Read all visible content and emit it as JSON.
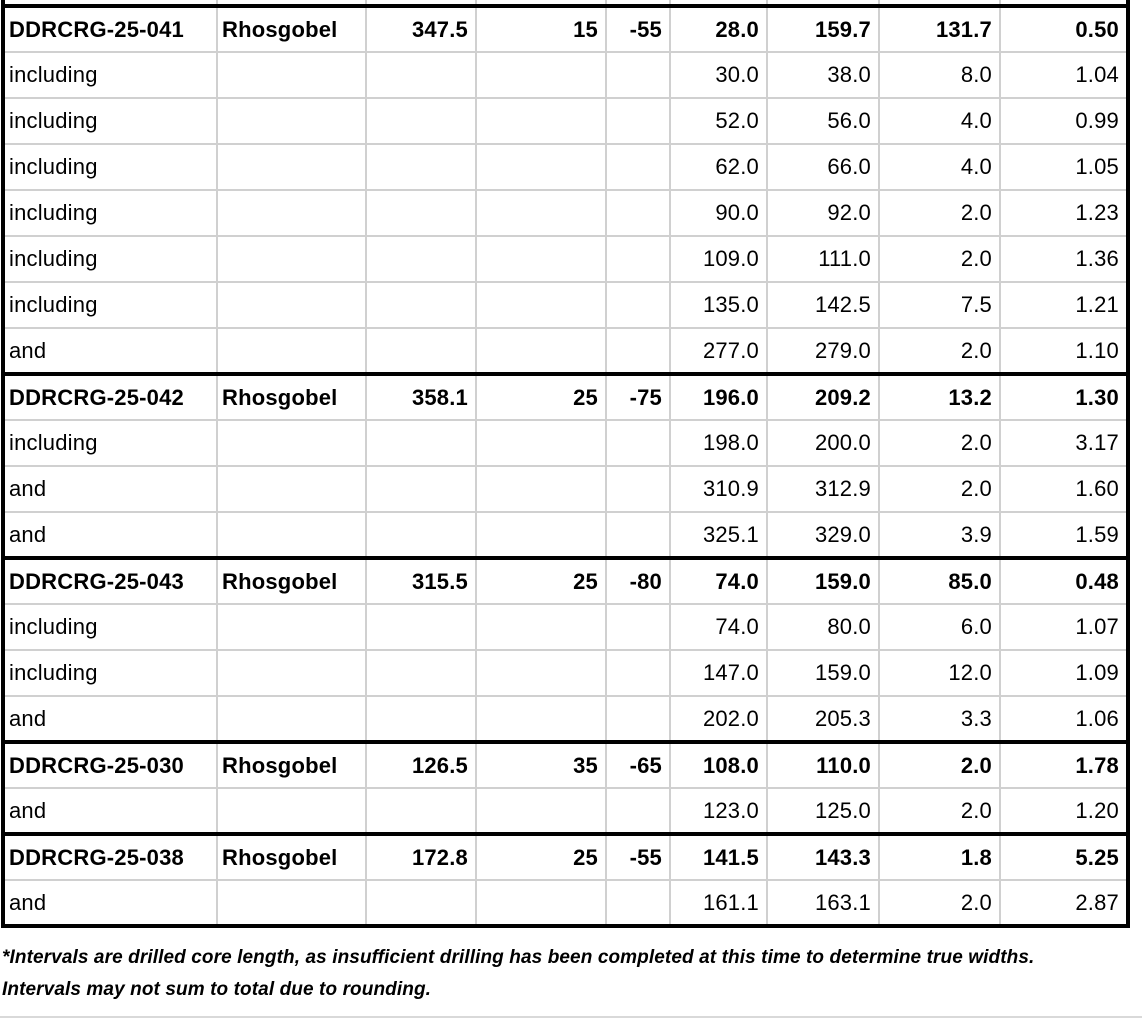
{
  "table": {
    "rows": [
      {
        "type": "hole",
        "cells": [
          "DDRCRG-25-041",
          "Rhosgobel",
          "347.5",
          "15",
          "-55",
          "28.0",
          "159.7",
          "131.7",
          "0.50"
        ]
      },
      {
        "type": "interval",
        "cells": [
          "including",
          "",
          "",
          "",
          "",
          "30.0",
          "38.0",
          "8.0",
          "1.04"
        ]
      },
      {
        "type": "interval",
        "cells": [
          "including",
          "",
          "",
          "",
          "",
          "52.0",
          "56.0",
          "4.0",
          "0.99"
        ]
      },
      {
        "type": "interval",
        "cells": [
          "including",
          "",
          "",
          "",
          "",
          "62.0",
          "66.0",
          "4.0",
          "1.05"
        ]
      },
      {
        "type": "interval",
        "cells": [
          "including",
          "",
          "",
          "",
          "",
          "90.0",
          "92.0",
          "2.0",
          "1.23"
        ]
      },
      {
        "type": "interval",
        "cells": [
          "including",
          "",
          "",
          "",
          "",
          "109.0",
          "111.0",
          "2.0",
          "1.36"
        ]
      },
      {
        "type": "interval",
        "cells": [
          "including",
          "",
          "",
          "",
          "",
          "135.0",
          "142.5",
          "7.5",
          "1.21"
        ]
      },
      {
        "type": "interval",
        "cells": [
          "and",
          "",
          "",
          "",
          "",
          "277.0",
          "279.0",
          "2.0",
          "1.10"
        ]
      },
      {
        "type": "hole",
        "cells": [
          "DDRCRG-25-042",
          "Rhosgobel",
          "358.1",
          "25",
          "-75",
          "196.0",
          "209.2",
          "13.2",
          "1.30"
        ]
      },
      {
        "type": "interval",
        "cells": [
          "including",
          "",
          "",
          "",
          "",
          "198.0",
          "200.0",
          "2.0",
          "3.17"
        ]
      },
      {
        "type": "interval",
        "cells": [
          "and",
          "",
          "",
          "",
          "",
          "310.9",
          "312.9",
          "2.0",
          "1.60"
        ]
      },
      {
        "type": "interval",
        "cells": [
          "and",
          "",
          "",
          "",
          "",
          "325.1",
          "329.0",
          "3.9",
          "1.59"
        ]
      },
      {
        "type": "hole",
        "cells": [
          "DDRCRG-25-043",
          "Rhosgobel",
          "315.5",
          "25",
          "-80",
          "74.0",
          "159.0",
          "85.0",
          "0.48"
        ]
      },
      {
        "type": "interval",
        "cells": [
          "including",
          "",
          "",
          "",
          "",
          "74.0",
          "80.0",
          "6.0",
          "1.07"
        ]
      },
      {
        "type": "interval",
        "cells": [
          "including",
          "",
          "",
          "",
          "",
          "147.0",
          "159.0",
          "12.0",
          "1.09"
        ]
      },
      {
        "type": "interval",
        "cells": [
          "and",
          "",
          "",
          "",
          "",
          "202.0",
          "205.3",
          "3.3",
          "1.06"
        ]
      },
      {
        "type": "hole",
        "cells": [
          "DDRCRG-25-030",
          "Rhosgobel",
          "126.5",
          "35",
          "-65",
          "108.0",
          "110.0",
          "2.0",
          "1.78"
        ]
      },
      {
        "type": "interval",
        "cells": [
          "and",
          "",
          "",
          "",
          "",
          "123.0",
          "125.0",
          "2.0",
          "1.20"
        ]
      },
      {
        "type": "hole",
        "cells": [
          "DDRCRG-25-038",
          "Rhosgobel",
          "172.8",
          "25",
          "-55",
          "141.5",
          "143.3",
          "1.8",
          "5.25"
        ]
      },
      {
        "type": "interval",
        "cells": [
          "and",
          "",
          "",
          "",
          "",
          "161.1",
          "163.1",
          "2.0",
          "2.87"
        ]
      }
    ]
  },
  "footnotes": {
    "line1": "*Intervals are drilled core length, as insufficient drilling has been completed at this time to determine true widths.",
    "line2": "Intervals may not sum to total due to rounding."
  },
  "colors": {
    "grid_line": "#d0d0d0",
    "frame_line": "#000000",
    "bottom_divider": "#d9d9d9",
    "background": "#ffffff",
    "text": "#000000"
  }
}
